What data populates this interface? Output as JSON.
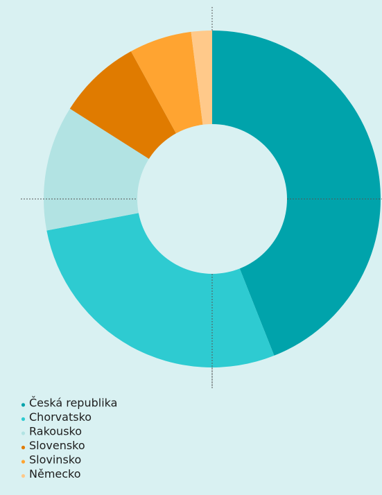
{
  "chart_data": {
    "type": "pie",
    "donut": true,
    "categories": [
      "Česká republika",
      "Chorvatsko",
      "Rakousko",
      "Slovensko",
      "Slovinsko",
      "Německo"
    ],
    "values": [
      44,
      28,
      12,
      8,
      6,
      2
    ],
    "colors": [
      "#00a3ab",
      "#2ecbd1",
      "#b2e3e3",
      "#e07b00",
      "#ffa431",
      "#ffc98a"
    ]
  }
}
